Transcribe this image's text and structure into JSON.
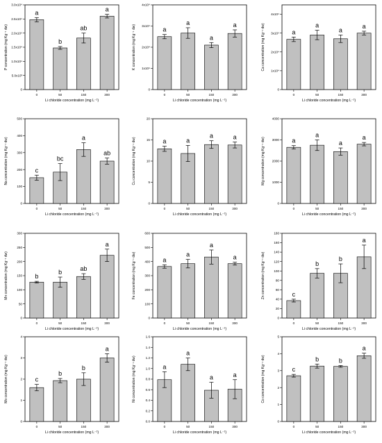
{
  "chart_data": [
    {
      "type": "bar",
      "ylabel": "P concentration (mg Kg⁻¹ dw)",
      "xlabel": "Li chloride concentration (mg L⁻¹)",
      "categories": [
        "0",
        "50",
        "150",
        "300"
      ],
      "values": [
        4.95,
        2.95,
        3.65,
        5.2
      ],
      "errors": [
        0.15,
        0.1,
        0.35,
        0.13
      ],
      "letters": [
        "a",
        "b",
        "ab",
        "a"
      ],
      "ylim": [
        0,
        6
      ],
      "yticks": [
        0,
        1,
        2,
        3,
        4,
        5,
        6
      ],
      "ytick_labels": [
        "0",
        "5.0x10³",
        "1.0x10⁴",
        "1.5x10⁴",
        "2.0x10⁴",
        "2.5x10⁴",
        "3.0x10⁴"
      ]
    },
    {
      "type": "bar",
      "ylabel": "K concentration (mg Kg⁻¹ dw)",
      "xlabel": "Li chloride concentration (mg L⁻¹)",
      "categories": [
        "0",
        "50",
        "150",
        "300"
      ],
      "values": [
        2.5,
        2.67,
        2.1,
        2.65
      ],
      "errors": [
        0.1,
        0.25,
        0.12,
        0.17
      ],
      "letters": [
        "a",
        "a",
        "a",
        "a"
      ],
      "ylim": [
        0,
        4
      ],
      "yticks": [
        0,
        1,
        2,
        3,
        4
      ],
      "ytick_labels": [
        "0",
        "1x10⁴",
        "2x10⁴",
        "3x10⁴",
        "4x10⁴"
      ]
    },
    {
      "type": "bar",
      "ylabel": "Ca concentration (mg Kg⁻¹ dw)",
      "xlabel": "Li chloride concentration (mg L⁻¹)",
      "categories": [
        "0",
        "50",
        "150",
        "300"
      ],
      "values": [
        2.67,
        2.9,
        2.7,
        3.0
      ],
      "errors": [
        0.12,
        0.25,
        0.2,
        0.1
      ],
      "letters": [
        "a",
        "a",
        "a",
        "a"
      ],
      "ylim": [
        0,
        4.5
      ],
      "yticks": [
        0,
        1,
        2,
        3,
        4
      ],
      "ytick_labels": [
        "0",
        "1x10⁴",
        "2x10⁴",
        "3x10⁴",
        "4x10⁴"
      ]
    },
    {
      "type": "bar",
      "ylabel": "Na concentration (mg Kg⁻¹ dw)",
      "xlabel": "Li chloride concentration (mg L⁻¹)",
      "categories": [
        "0",
        "50",
        "150",
        "300"
      ],
      "values": [
        152,
        185,
        318,
        250
      ],
      "errors": [
        15,
        50,
        40,
        18
      ],
      "letters": [
        "c",
        "bc",
        "a",
        "ab"
      ],
      "ylim": [
        0,
        500
      ],
      "yticks": [
        0,
        100,
        200,
        300,
        400,
        500
      ],
      "ytick_labels": [
        "0",
        "100",
        "200",
        "300",
        "400",
        "500"
      ]
    },
    {
      "type": "bar",
      "ylabel": "Cu concentration (mg Kg⁻¹ dw)",
      "xlabel": "Li chloride concentration (mg L⁻¹)",
      "categories": [
        "0",
        "50",
        "150",
        "300"
      ],
      "values": [
        12.9,
        11.8,
        13.9,
        13.8
      ],
      "errors": [
        0.6,
        1.9,
        0.9,
        0.7
      ],
      "letters": [
        "a",
        "a",
        "a",
        "a"
      ],
      "ylim": [
        0,
        20
      ],
      "yticks": [
        0,
        5,
        10,
        15,
        20
      ],
      "ytick_labels": [
        "0",
        "5",
        "10",
        "15",
        "20"
      ]
    },
    {
      "type": "bar",
      "ylabel": "Mg concentration (mg Kg⁻¹ dw)",
      "xlabel": "Li chloride concentration (mg L⁻¹)",
      "categories": [
        "0",
        "50",
        "150",
        "300"
      ],
      "values": [
        2650,
        2750,
        2450,
        2800
      ],
      "errors": [
        80,
        250,
        170,
        80
      ],
      "letters": [
        "a",
        "a",
        "a",
        "a"
      ],
      "ylim": [
        0,
        4000
      ],
      "yticks": [
        0,
        1000,
        2000,
        3000,
        4000
      ],
      "ytick_labels": [
        "0",
        "1000",
        "2000",
        "3000",
        "4000"
      ]
    },
    {
      "type": "bar",
      "ylabel": "Mn concentration (mg Kg⁻¹ dw)",
      "xlabel": "Li chloride concentration (mg L⁻¹)",
      "categories": [
        "0",
        "50",
        "150",
        "300"
      ],
      "values": [
        127,
        127,
        147,
        222
      ],
      "errors": [
        3,
        18,
        10,
        22
      ],
      "letters": [
        "b",
        "b",
        "ab",
        "a"
      ],
      "ylim": [
        0,
        300
      ],
      "yticks": [
        0,
        50,
        100,
        150,
        200,
        250,
        300
      ],
      "ytick_labels": [
        "0",
        "50",
        "100",
        "150",
        "200",
        "250",
        "300"
      ]
    },
    {
      "type": "bar",
      "ylabel": "Fe concentration (mg Kg⁻¹ dw)",
      "xlabel": "Li chloride concentration (mg L⁻¹)",
      "categories": [
        "0",
        "50",
        "150",
        "300"
      ],
      "values": [
        365,
        385,
        432,
        385
      ],
      "errors": [
        12,
        30,
        50,
        10
      ],
      "letters": [
        "a",
        "a",
        "a",
        "a"
      ],
      "ylim": [
        0,
        600
      ],
      "yticks": [
        0,
        100,
        200,
        300,
        400,
        500,
        600
      ],
      "ytick_labels": [
        "0",
        "100",
        "200",
        "300",
        "400",
        "500",
        "600"
      ]
    },
    {
      "type": "bar",
      "ylabel": "Zn concentration (mg Kg⁻¹ dw)",
      "xlabel": "Li chloride concentration (mg L⁻¹)",
      "categories": [
        "0",
        "50",
        "150",
        "300"
      ],
      "values": [
        37,
        95,
        95,
        130
      ],
      "errors": [
        3,
        10,
        20,
        25
      ],
      "letters": [
        "c",
        "b",
        "b",
        "a"
      ],
      "ylim": [
        0,
        180
      ],
      "yticks": [
        0,
        20,
        40,
        60,
        80,
        100,
        120,
        140,
        160,
        180
      ],
      "ytick_labels": [
        "0",
        "20",
        "40",
        "60",
        "80",
        "100",
        "120",
        "140",
        "160",
        "180"
      ]
    },
    {
      "type": "bar",
      "ylabel": "Mo concentration (mg Kg⁻¹ dw)",
      "xlabel": "Li chloride concentration (mg L⁻¹)",
      "categories": [
        "0",
        "50",
        "150",
        "300"
      ],
      "values": [
        1.6,
        1.93,
        2.0,
        3.0
      ],
      "errors": [
        0.15,
        0.1,
        0.3,
        0.2
      ],
      "letters": [
        "c",
        "b",
        "b",
        "a"
      ],
      "ylim": [
        0,
        4
      ],
      "yticks": [
        0,
        1,
        2,
        3,
        4
      ],
      "ytick_labels": [
        "0",
        "1",
        "2",
        "3",
        "4"
      ]
    },
    {
      "type": "bar",
      "ylabel": "Ni concentration (mg Kg⁻¹ dw)",
      "xlabel": "Li chloride concentration (mg L⁻¹)",
      "categories": [
        "0",
        "50",
        "150",
        "300"
      ],
      "values": [
        0.79,
        1.08,
        0.59,
        0.61
      ],
      "errors": [
        0.15,
        0.12,
        0.15,
        0.18
      ],
      "letters": [
        "a",
        "a",
        "a",
        "a"
      ],
      "ylim": [
        0,
        1.6
      ],
      "yticks": [
        0,
        0.2,
        0.4,
        0.6,
        0.8,
        1.0,
        1.2,
        1.4,
        1.6
      ],
      "ytick_labels": [
        "0.0",
        "0.2",
        "0.4",
        "0.6",
        "0.8",
        "1.0",
        "1.2",
        "1.4",
        "1.6"
      ]
    },
    {
      "type": "bar",
      "ylabel": "Co concentration (mg Kg⁻¹ dw)",
      "xlabel": "Li chloride concentration (mg L⁻¹)",
      "categories": [
        "0",
        "50",
        "150",
        "300"
      ],
      "values": [
        2.7,
        3.27,
        3.25,
        3.88
      ],
      "errors": [
        0.08,
        0.12,
        0.05,
        0.15
      ],
      "letters": [
        "c",
        "b",
        "b",
        "a"
      ],
      "ylim": [
        0,
        5
      ],
      "yticks": [
        0,
        1,
        2,
        3,
        4,
        5
      ],
      "ytick_labels": [
        "0",
        "1",
        "2",
        "3",
        "4",
        "5"
      ]
    }
  ]
}
